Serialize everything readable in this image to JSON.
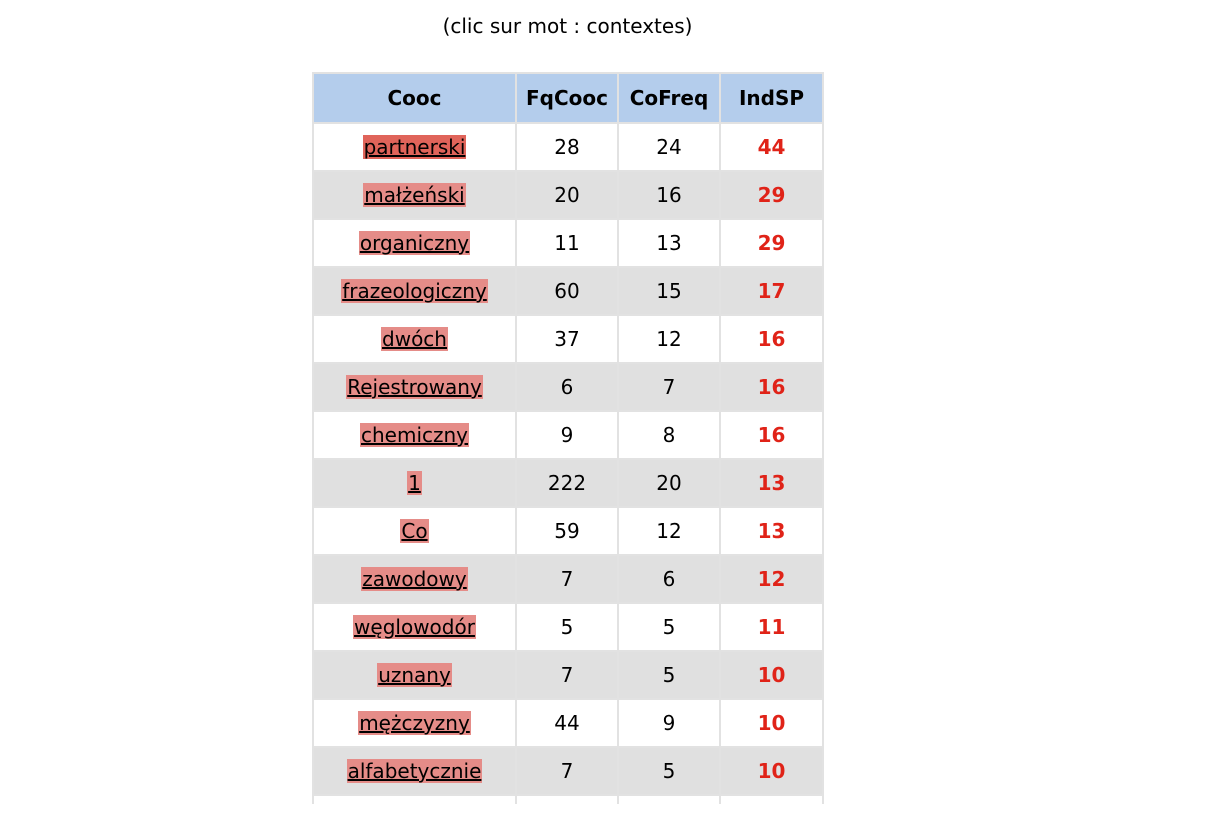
{
  "caption": "(clic sur mot : contextes)",
  "table": {
    "headers": [
      "Cooc",
      "FqCooc",
      "CoFreq",
      "IndSP"
    ],
    "rows": [
      {
        "word": "partnerski",
        "fqcooc": "28",
        "cofreq": "24",
        "indsp": "44",
        "highlight": "#e0645a"
      },
      {
        "word": "małżeński",
        "fqcooc": "20",
        "cofreq": "16",
        "indsp": "29",
        "highlight": "#e58c88"
      },
      {
        "word": "organiczny",
        "fqcooc": "11",
        "cofreq": "13",
        "indsp": "29",
        "highlight": "#e58c88"
      },
      {
        "word": "frazeologiczny",
        "fqcooc": "60",
        "cofreq": "15",
        "indsp": "17",
        "highlight": "#e58c88"
      },
      {
        "word": "dwóch",
        "fqcooc": "37",
        "cofreq": "12",
        "indsp": "16",
        "highlight": "#e58c88"
      },
      {
        "word": "Rejestrowany",
        "fqcooc": "6",
        "cofreq": "7",
        "indsp": "16",
        "highlight": "#e58c88"
      },
      {
        "word": "chemiczny",
        "fqcooc": "9",
        "cofreq": "8",
        "indsp": "16",
        "highlight": "#e58c88"
      },
      {
        "word": "1",
        "fqcooc": "222",
        "cofreq": "20",
        "indsp": "13",
        "highlight": "#e58c88"
      },
      {
        "word": "Co",
        "fqcooc": "59",
        "cofreq": "12",
        "indsp": "13",
        "highlight": "#e58c88"
      },
      {
        "word": "zawodowy",
        "fqcooc": "7",
        "cofreq": "6",
        "indsp": "12",
        "highlight": "#e58c88"
      },
      {
        "word": "węglowodór",
        "fqcooc": "5",
        "cofreq": "5",
        "indsp": "11",
        "highlight": "#e58c88"
      },
      {
        "word": "uznany",
        "fqcooc": "7",
        "cofreq": "5",
        "indsp": "10",
        "highlight": "#e58c88"
      },
      {
        "word": "mężczyzny",
        "fqcooc": "44",
        "cofreq": "9",
        "indsp": "10",
        "highlight": "#e58c88"
      },
      {
        "word": "alfabetycznie",
        "fqcooc": "7",
        "cofreq": "5",
        "indsp": "10",
        "highlight": "#e58c88"
      }
    ]
  },
  "colors": {
    "header_bg": "#b4cdec",
    "row_even_bg": "#e0e0e0",
    "row_odd_bg": "#ffffff",
    "border": "#e2e2e2",
    "score_text": "#e02318"
  }
}
